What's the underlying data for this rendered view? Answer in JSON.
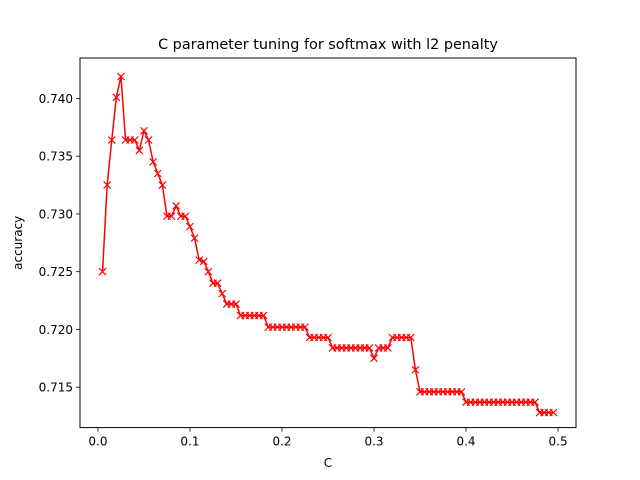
{
  "chart_data": {
    "type": "line",
    "title": "C parameter tuning for softmax with l2 penalty",
    "xlabel": "C",
    "ylabel": "accuracy",
    "xlim": [
      -0.0195,
      0.5195
    ],
    "ylim": [
      0.7115,
      0.7435
    ],
    "xticks": [
      0.0,
      0.1,
      0.2,
      0.3,
      0.4,
      0.5
    ],
    "xtick_labels": [
      "0.0",
      "0.1",
      "0.2",
      "0.3",
      "0.4",
      "0.5"
    ],
    "yticks": [
      0.715,
      0.72,
      0.725,
      0.73,
      0.735,
      0.74
    ],
    "ytick_labels": [
      "0.715",
      "0.720",
      "0.725",
      "0.730",
      "0.735",
      "0.740"
    ],
    "grid": false,
    "legend": "none",
    "series": [
      {
        "color": "#ff0000",
        "marker": "x",
        "x": [
          0.005,
          0.01,
          0.015,
          0.02,
          0.025,
          0.03,
          0.035,
          0.04,
          0.045,
          0.05,
          0.055,
          0.06,
          0.065,
          0.07,
          0.075,
          0.08,
          0.085,
          0.09,
          0.095,
          0.1,
          0.105,
          0.11,
          0.115,
          0.12,
          0.125,
          0.13,
          0.135,
          0.14,
          0.145,
          0.15,
          0.155,
          0.16,
          0.165,
          0.17,
          0.175,
          0.18,
          0.185,
          0.19,
          0.195,
          0.2,
          0.205,
          0.21,
          0.215,
          0.22,
          0.225,
          0.23,
          0.235,
          0.24,
          0.245,
          0.25,
          0.255,
          0.26,
          0.265,
          0.27,
          0.275,
          0.28,
          0.285,
          0.29,
          0.295,
          0.3,
          0.305,
          0.31,
          0.315,
          0.32,
          0.325,
          0.33,
          0.335,
          0.34,
          0.345,
          0.35,
          0.355,
          0.36,
          0.365,
          0.37,
          0.375,
          0.38,
          0.385,
          0.39,
          0.395,
          0.4,
          0.405,
          0.41,
          0.415,
          0.42,
          0.425,
          0.43,
          0.435,
          0.44,
          0.445,
          0.45,
          0.455,
          0.46,
          0.465,
          0.47,
          0.475,
          0.48,
          0.485,
          0.49,
          0.495
        ],
        "y": [
          0.725,
          0.7325,
          0.7364,
          0.7401,
          0.7419,
          0.7364,
          0.7364,
          0.7364,
          0.7355,
          0.7372,
          0.7364,
          0.7345,
          0.7335,
          0.7325,
          0.7298,
          0.7298,
          0.7307,
          0.7298,
          0.7298,
          0.7289,
          0.7279,
          0.726,
          0.7259,
          0.725,
          0.724,
          0.724,
          0.7231,
          0.7222,
          0.7222,
          0.7222,
          0.7212,
          0.7212,
          0.7212,
          0.7212,
          0.7212,
          0.7212,
          0.7202,
          0.7202,
          0.7202,
          0.7202,
          0.7202,
          0.7202,
          0.7202,
          0.7202,
          0.7202,
          0.7193,
          0.7193,
          0.7193,
          0.7193,
          0.7193,
          0.7184,
          0.7184,
          0.7184,
          0.7184,
          0.7184,
          0.7184,
          0.7184,
          0.7184,
          0.7184,
          0.7175,
          0.7184,
          0.7184,
          0.7184,
          0.7193,
          0.7193,
          0.7193,
          0.7193,
          0.7193,
          0.7165,
          0.7146,
          0.7146,
          0.7146,
          0.7146,
          0.7146,
          0.7146,
          0.7146,
          0.7146,
          0.7146,
          0.7146,
          0.7137,
          0.7137,
          0.7137,
          0.7137,
          0.7137,
          0.7137,
          0.7137,
          0.7137,
          0.7137,
          0.7137,
          0.7137,
          0.7137,
          0.7137,
          0.7137,
          0.7137,
          0.7137,
          0.7128,
          0.7128,
          0.7128,
          0.7128
        ]
      }
    ]
  }
}
